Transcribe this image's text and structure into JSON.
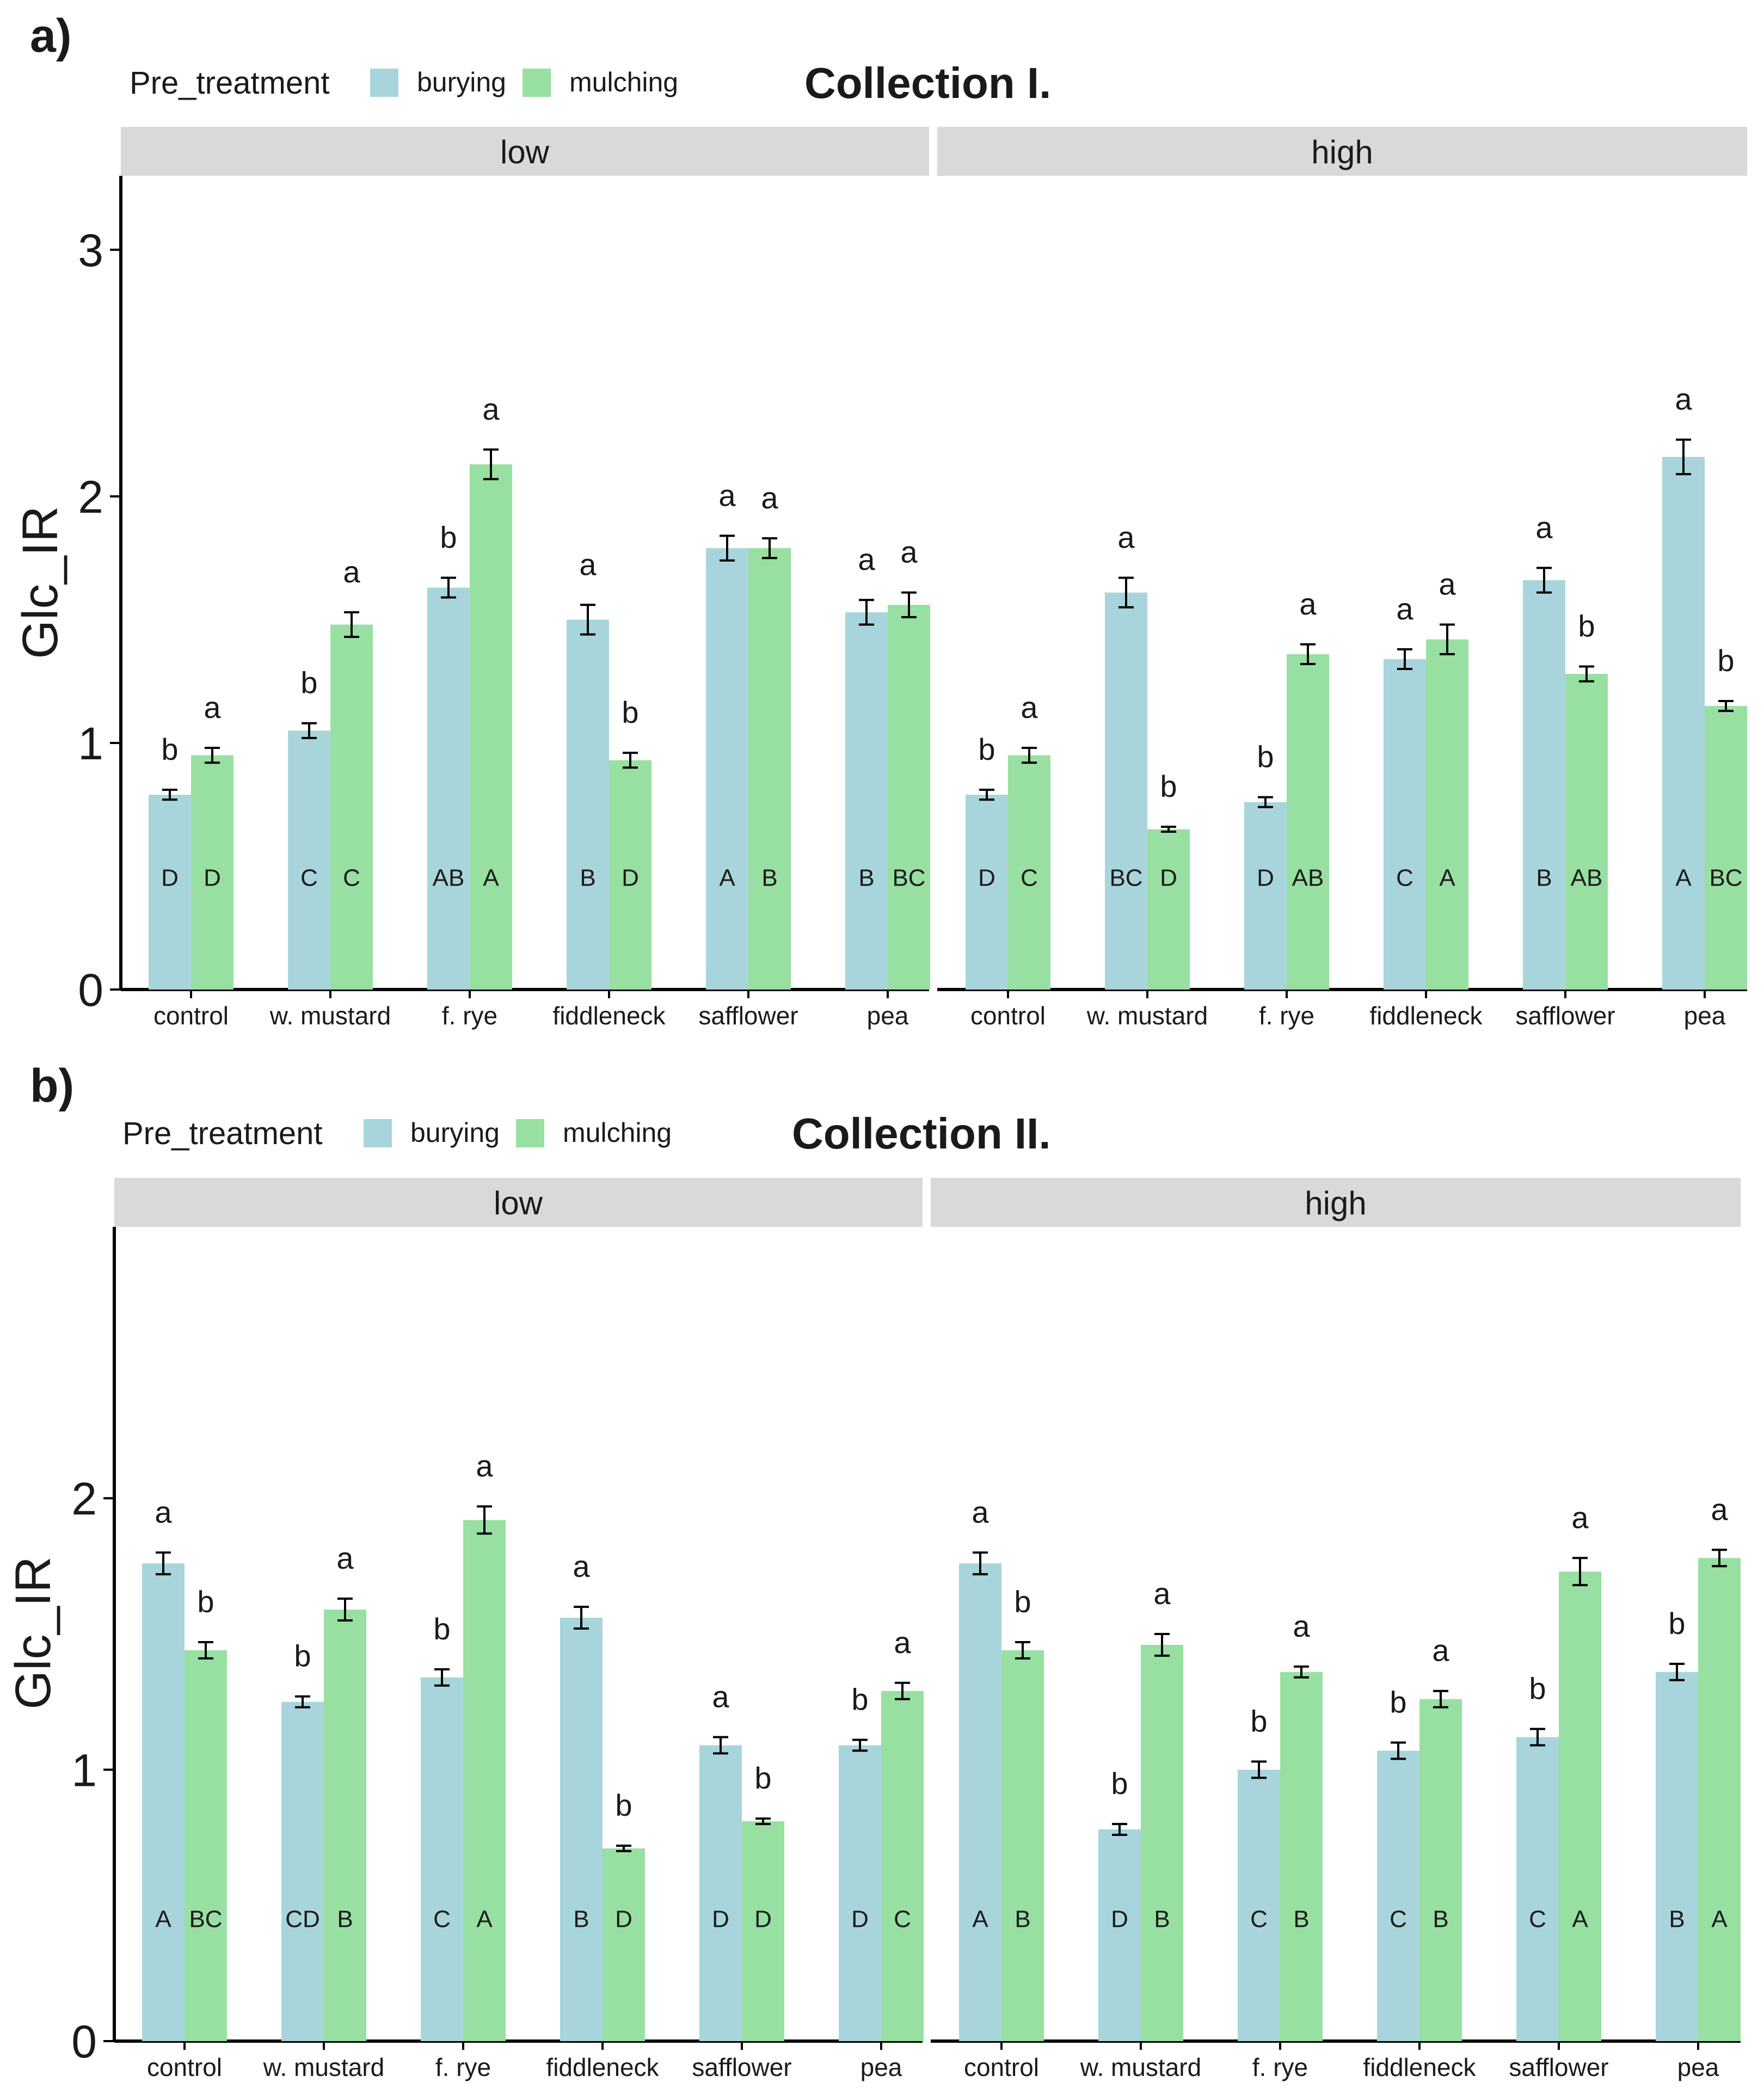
{
  "colors": {
    "burying": "#a8d5db",
    "mulching": "#98e0a1"
  },
  "chart_data": [
    {
      "type": "bar",
      "panel_tag": "a)",
      "title": "Collection I.",
      "legend": {
        "title": "Pre_treatment",
        "entries": [
          "burying",
          "mulching"
        ]
      },
      "facets": [
        "low",
        "high"
      ],
      "xlabel": "",
      "ylabel": "Glc_IR",
      "ylim": [
        0,
        3.3
      ],
      "yticks": [
        0,
        1,
        2,
        3
      ],
      "categories": [
        "control",
        "w. mustard",
        "f. rye",
        "fiddleneck",
        "safflower",
        "pea"
      ],
      "series": [
        {
          "name": "burying",
          "low": {
            "values": [
              0.79,
              1.05,
              1.63,
              1.5,
              1.79,
              1.53
            ],
            "errors": [
              0.02,
              0.03,
              0.04,
              0.06,
              0.05,
              0.05
            ],
            "sig": [
              "b",
              "b",
              "b",
              "a",
              "a",
              "a"
            ],
            "groups": [
              "D",
              "C",
              "AB",
              "B",
              "A",
              "B"
            ]
          },
          "high": {
            "values": [
              0.79,
              1.61,
              0.76,
              1.34,
              1.66,
              2.16
            ],
            "errors": [
              0.02,
              0.06,
              0.02,
              0.04,
              0.05,
              0.07
            ],
            "sig": [
              "b",
              "a",
              "b",
              "a",
              "a",
              "a"
            ],
            "groups": [
              "D",
              "BC",
              "D",
              "C",
              "B",
              "A"
            ]
          }
        },
        {
          "name": "mulching",
          "low": {
            "values": [
              0.95,
              1.48,
              2.13,
              0.93,
              1.79,
              1.56
            ],
            "errors": [
              0.03,
              0.05,
              0.06,
              0.03,
              0.04,
              0.05
            ],
            "sig": [
              "a",
              "a",
              "a",
              "b",
              "a",
              "a"
            ],
            "groups": [
              "D",
              "C",
              "A",
              "D",
              "B",
              "BC"
            ]
          },
          "high": {
            "values": [
              0.95,
              0.65,
              1.36,
              1.42,
              1.28,
              1.15
            ],
            "errors": [
              0.03,
              0.01,
              0.04,
              0.06,
              0.03,
              0.02
            ],
            "sig": [
              "a",
              "b",
              "a",
              "a",
              "b",
              "b"
            ],
            "groups": [
              "C",
              "D",
              "AB",
              "A",
              "AB",
              "BC"
            ]
          }
        }
      ]
    },
    {
      "type": "bar",
      "panel_tag": "b)",
      "title": "Collection II.",
      "legend": {
        "title": "Pre_treatment",
        "entries": [
          "burying",
          "mulching"
        ]
      },
      "facets": [
        "low",
        "high"
      ],
      "xlabel": "",
      "ylabel": "Glc_IR",
      "ylim": [
        0,
        3.0
      ],
      "yticks": [
        0,
        1,
        2
      ],
      "categories": [
        "control",
        "w. mustard",
        "f. rye",
        "fiddleneck",
        "safflower",
        "pea"
      ],
      "series": [
        {
          "name": "burying",
          "low": {
            "values": [
              1.76,
              1.25,
              1.34,
              1.56,
              1.09,
              1.09
            ],
            "errors": [
              0.04,
              0.02,
              0.03,
              0.04,
              0.03,
              0.02
            ],
            "sig": [
              "a",
              "b",
              "b",
              "a",
              "a",
              "b"
            ],
            "groups": [
              "A",
              "CD",
              "C",
              "B",
              "D",
              "D"
            ]
          },
          "high": {
            "values": [
              1.76,
              0.78,
              1.0,
              1.07,
              1.12,
              1.36
            ],
            "errors": [
              0.04,
              0.02,
              0.03,
              0.03,
              0.03,
              0.03
            ],
            "sig": [
              "a",
              "b",
              "b",
              "b",
              "b",
              "b"
            ],
            "groups": [
              "A",
              "D",
              "C",
              "C",
              "C",
              "B"
            ]
          }
        },
        {
          "name": "mulching",
          "low": {
            "values": [
              1.44,
              1.59,
              1.92,
              0.71,
              0.81,
              1.29
            ],
            "errors": [
              0.03,
              0.04,
              0.05,
              0.01,
              0.01,
              0.03
            ],
            "sig": [
              "b",
              "a",
              "a",
              "b",
              "b",
              "a"
            ],
            "groups": [
              "BC",
              "B",
              "A",
              "D",
              "D",
              "C"
            ]
          },
          "high": {
            "values": [
              1.44,
              1.46,
              1.36,
              1.26,
              1.73,
              1.78
            ],
            "errors": [
              0.03,
              0.04,
              0.02,
              0.03,
              0.05,
              0.03
            ],
            "sig": [
              "b",
              "a",
              "a",
              "a",
              "a",
              "a"
            ],
            "groups": [
              "B",
              "B",
              "B",
              "B",
              "A",
              "A"
            ]
          }
        }
      ]
    }
  ]
}
